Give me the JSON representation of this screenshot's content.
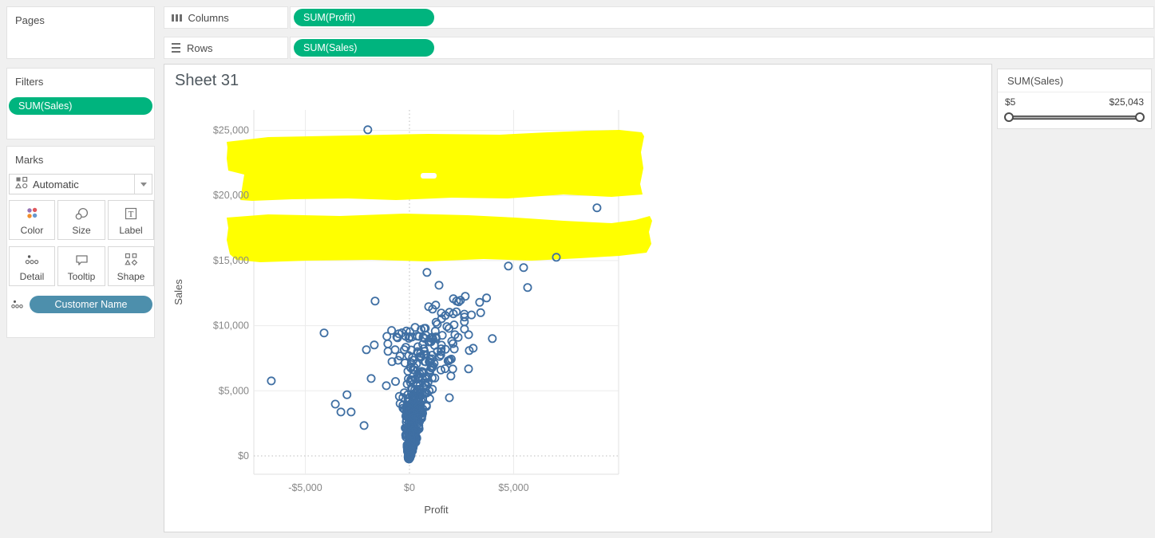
{
  "pages": {
    "title": "Pages"
  },
  "filters": {
    "title": "Filters",
    "pill": "SUM(Sales)"
  },
  "marks": {
    "title": "Marks",
    "mode": "Automatic",
    "buttons": [
      {
        "label": "Color"
      },
      {
        "label": "Size"
      },
      {
        "label": "Label"
      },
      {
        "label": "Detail"
      },
      {
        "label": "Tooltip"
      },
      {
        "label": "Shape"
      }
    ],
    "detail_pill": "Customer Name"
  },
  "shelves": {
    "columns_label": "Columns",
    "rows_label": "Rows",
    "columns_pill": "SUM(Profit)",
    "rows_pill": "SUM(Sales)"
  },
  "sheet": {
    "title": "Sheet 31"
  },
  "filter_card": {
    "title": "SUM(Sales)",
    "min": "$5",
    "max": "$25,043"
  },
  "colors": {
    "pill_green": "#00b47e",
    "pill_blue": "#4d8fac",
    "mark_stroke": "#3f6fa3",
    "highlight_yellow": "#ffff00"
  },
  "icons": {
    "columns": "three-vertical-bars",
    "rows": "three-horizontal-lines",
    "mark_type": "shape-grid",
    "dropdown": "caret-down",
    "color": "four-color-dots",
    "size": "two-circles",
    "label": "boxed-T",
    "detail": "dots",
    "tooltip": "speech-bubble",
    "shape": "square-triangle-diamond",
    "slider_handles": "round-knobs"
  },
  "chart_data": {
    "type": "scatter",
    "title": "Sheet 31",
    "xlabel": "Profit",
    "ylabel": "Sales",
    "xlim": [
      -7471,
      10040
    ],
    "ylim": [
      -1408,
      26560
    ],
    "grid": true,
    "legend": "none",
    "x_ticks": [
      {
        "v": -5000,
        "label": "-$5,000"
      },
      {
        "v": 0,
        "label": "$0"
      },
      {
        "v": 5000,
        "label": "$5,000"
      }
    ],
    "y_ticks": [
      {
        "v": 0,
        "label": "$0"
      },
      {
        "v": 5000,
        "label": "$5,000"
      },
      {
        "v": 10000,
        "label": "$10,000"
      },
      {
        "v": 15000,
        "label": "$15,000"
      },
      {
        "v": 20000,
        "label": "$20,000"
      },
      {
        "v": 25000,
        "label": "$25,000"
      }
    ],
    "zero_lines": {
      "x": 0,
      "y": 0
    },
    "marker": {
      "shape": "open-circle",
      "color": "#3f6fa3",
      "radius": 4.6,
      "stroke_width": 1.8
    },
    "outliers": [
      [
        -2000,
        25043
      ],
      [
        9000,
        19050
      ],
      [
        7050,
        15250
      ],
      [
        4750,
        14580
      ],
      [
        5480,
        14460
      ],
      [
        5670,
        12930
      ],
      [
        840,
        14090
      ],
      [
        1420,
        13100
      ],
      [
        -1650,
        11890
      ],
      [
        -4100,
        9440
      ],
      [
        -6630,
        5760
      ],
      [
        270,
        9870
      ],
      [
        -570,
        9070
      ],
      [
        3980,
        9010
      ],
      [
        920,
        11460
      ],
      [
        1260,
        11580
      ],
      [
        1340,
        10110
      ],
      [
        1720,
        10780
      ],
      [
        1920,
        11030
      ],
      [
        2110,
        12070
      ],
      [
        2260,
        11890
      ],
      [
        2450,
        11950
      ],
      [
        2680,
        12260
      ],
      [
        2640,
        10660
      ],
      [
        2180,
        9310
      ],
      [
        2840,
        9310
      ],
      [
        3060,
        8270
      ],
      [
        2870,
        8090
      ],
      [
        -2070,
        8150
      ],
      [
        -1690,
        8520
      ],
      [
        -1030,
        8030
      ],
      [
        -690,
        8150
      ],
      [
        -610,
        9130
      ],
      [
        -1840,
        5940
      ],
      [
        -1110,
        5390
      ],
      [
        -3560,
        3980
      ],
      [
        -3290,
        3370
      ],
      [
        -2800,
        3370
      ],
      [
        -2180,
        2330
      ],
      [
        2835,
        6680
      ],
      [
        1990,
        6130
      ],
      [
        1915,
        4470
      ],
      [
        2110,
        10910
      ],
      [
        1110,
        11270
      ],
      [
        1530,
        10970
      ],
      [
        -3000,
        4700
      ]
    ],
    "cluster": {
      "seed": 1337,
      "count": 560,
      "max_sales": 9800,
      "density_exp": 2.6,
      "center_slope": 0.07,
      "spread_base": 80,
      "spread_slope": 0.22,
      "tip_under": 250
    },
    "tail": {
      "seed": 777,
      "count": 28,
      "sales_min": 5800,
      "sales_span": 6500,
      "slope_min": 0.14,
      "slope_span": 0.16,
      "jitter": 700
    },
    "highlights": {
      "color": "#ffff00",
      "note": "two hand-drawn highlighter bands over the 15k-25k sales range",
      "bands": [
        [
          [
            78,
            97
          ],
          [
            130,
            91
          ],
          [
            230,
            89
          ],
          [
            330,
            87
          ],
          [
            420,
            88
          ],
          [
            480,
            85
          ],
          [
            530,
            83
          ],
          [
            570,
            82
          ],
          [
            598,
            85
          ],
          [
            601,
            90
          ],
          [
            597,
            110
          ],
          [
            600,
            130
          ],
          [
            596,
            150
          ],
          [
            599,
            163
          ],
          [
            560,
            166
          ],
          [
            500,
            163
          ],
          [
            430,
            168
          ],
          [
            360,
            167
          ],
          [
            290,
            170
          ],
          [
            230,
            168
          ],
          [
            160,
            169
          ],
          [
            110,
            171
          ],
          [
            95,
            170
          ],
          [
            98,
            150
          ],
          [
            100,
            138
          ],
          [
            80,
            133
          ],
          [
            78,
            118
          ],
          [
            79,
            104
          ]
        ],
        [
          [
            78,
            192
          ],
          [
            130,
            188
          ],
          [
            220,
            190
          ],
          [
            300,
            187
          ],
          [
            380,
            189
          ],
          [
            440,
            192
          ],
          [
            500,
            196
          ],
          [
            560,
            199
          ],
          [
            590,
            195
          ],
          [
            608,
            190
          ],
          [
            611,
            196
          ],
          [
            607,
            210
          ],
          [
            610,
            225
          ],
          [
            604,
            236
          ],
          [
            570,
            240
          ],
          [
            520,
            243
          ],
          [
            460,
            246
          ],
          [
            400,
            244
          ],
          [
            330,
            247
          ],
          [
            260,
            245
          ],
          [
            180,
            246
          ],
          [
            120,
            248
          ],
          [
            90,
            245
          ],
          [
            82,
            238
          ],
          [
            78,
            220
          ],
          [
            80,
            205
          ]
        ]
      ],
      "hole": {
        "x": 321,
        "y": 136,
        "w": 20,
        "h": 7
      }
    }
  }
}
